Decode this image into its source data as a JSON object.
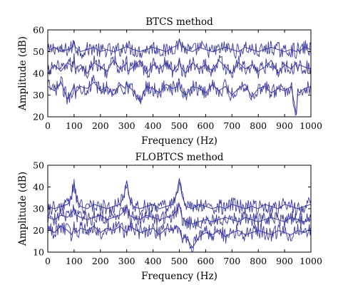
{
  "chart_data": [
    {
      "type": "line",
      "title": "BTCS method",
      "xlabel": "Frequency (Hz)",
      "ylabel": "Amplitude (dB)",
      "xlim": [
        0,
        1000
      ],
      "ylim": [
        20,
        60
      ],
      "xticks": [
        "0",
        "100",
        "200",
        "300",
        "400",
        "500",
        "600",
        "700",
        "800",
        "900",
        "1000"
      ],
      "yticks": [
        "20",
        "30",
        "40",
        "50",
        "60"
      ],
      "grid": false,
      "line_color": "#3a3aa0",
      "x": [
        0,
        25,
        50,
        75,
        95,
        100,
        105,
        125,
        150,
        175,
        200,
        225,
        250,
        275,
        295,
        300,
        305,
        325,
        350,
        375,
        400,
        425,
        450,
        475,
        495,
        500,
        505,
        525,
        550,
        575,
        600,
        625,
        650,
        675,
        700,
        725,
        750,
        775,
        800,
        825,
        850,
        875,
        900,
        925,
        945,
        950,
        955,
        975,
        1000
      ],
      "series": [
        {
          "values": [
            50,
            52,
            50,
            51,
            52,
            55,
            52,
            50,
            51,
            52,
            50,
            51,
            50,
            51,
            52,
            54,
            52,
            51,
            50,
            51,
            52,
            51,
            50,
            52,
            53,
            56,
            53,
            51,
            50,
            52,
            51,
            50,
            51,
            52,
            51,
            50,
            52,
            51,
            50,
            51,
            52,
            51,
            50,
            51,
            50,
            51,
            50,
            52,
            51
          ]
        },
        {
          "values": [
            40,
            44,
            41,
            45,
            43,
            46,
            42,
            44,
            40,
            45,
            43,
            41,
            46,
            42,
            44,
            45,
            41,
            43,
            46,
            40,
            44,
            42,
            45,
            41,
            44,
            47,
            43,
            40,
            45,
            42,
            44,
            41,
            46,
            43,
            40,
            45,
            42,
            44,
            41,
            43,
            46,
            40,
            44,
            42,
            45,
            41,
            44,
            43,
            42
          ]
        },
        {
          "values": [
            34,
            32,
            36,
            28,
            33,
            35,
            31,
            34,
            33,
            36,
            32,
            34,
            30,
            35,
            33,
            36,
            34,
            32,
            27,
            34,
            33,
            31,
            35,
            33,
            34,
            36,
            32,
            30,
            34,
            33,
            31,
            35,
            32,
            34,
            30,
            33,
            35,
            29,
            33,
            34,
            31,
            33,
            32,
            34,
            21,
            33,
            31,
            33,
            34
          ]
        }
      ]
    },
    {
      "type": "line",
      "title": "FLOBTCS method",
      "xlabel": "Frequency (Hz)",
      "ylabel": "Amplitude (dB)",
      "xlim": [
        0,
        1000
      ],
      "ylim": [
        10,
        50
      ],
      "xticks": [
        "0",
        "100",
        "200",
        "300",
        "400",
        "500",
        "600",
        "700",
        "800",
        "900",
        "1000"
      ],
      "yticks": [
        "10",
        "20",
        "30",
        "40",
        "50"
      ],
      "grid": false,
      "line_color": "#3a3aa0",
      "x": [
        0,
        25,
        50,
        75,
        90,
        100,
        110,
        125,
        150,
        175,
        200,
        225,
        250,
        275,
        290,
        300,
        310,
        325,
        350,
        375,
        400,
        425,
        450,
        475,
        490,
        500,
        510,
        525,
        550,
        575,
        600,
        625,
        650,
        675,
        700,
        725,
        750,
        775,
        800,
        825,
        850,
        875,
        900,
        925,
        950,
        975,
        1000
      ],
      "series": [
        {
          "values": [
            31,
            30,
            31,
            32,
            35,
            42,
            34,
            31,
            30,
            32,
            31,
            30,
            31,
            32,
            36,
            43,
            35,
            31,
            30,
            31,
            32,
            30,
            31,
            32,
            37,
            44,
            36,
            31,
            30,
            32,
            31,
            30,
            31,
            30,
            32,
            31,
            30,
            31,
            30,
            32,
            31,
            30,
            32,
            31,
            30,
            31,
            32
          ]
        },
        {
          "values": [
            26,
            25,
            27,
            26,
            28,
            30,
            27,
            26,
            25,
            26,
            27,
            25,
            26,
            27,
            29,
            31,
            27,
            26,
            25,
            27,
            26,
            25,
            26,
            27,
            29,
            32,
            26,
            24,
            23,
            24,
            25,
            24,
            25,
            26,
            25,
            24,
            26,
            25,
            24,
            25,
            26,
            25,
            24,
            26,
            25,
            24,
            25
          ]
        },
        {
          "values": [
            21,
            19,
            22,
            20,
            18,
            21,
            19,
            21,
            20,
            22,
            19,
            21,
            20,
            22,
            20,
            19,
            22,
            21,
            19,
            20,
            21,
            18,
            21,
            20,
            22,
            21,
            16,
            17,
            12,
            17,
            19,
            18,
            20,
            17,
            19,
            20,
            18,
            19,
            20,
            19,
            18,
            20,
            19,
            18,
            20,
            19,
            21
          ]
        }
      ]
    }
  ]
}
